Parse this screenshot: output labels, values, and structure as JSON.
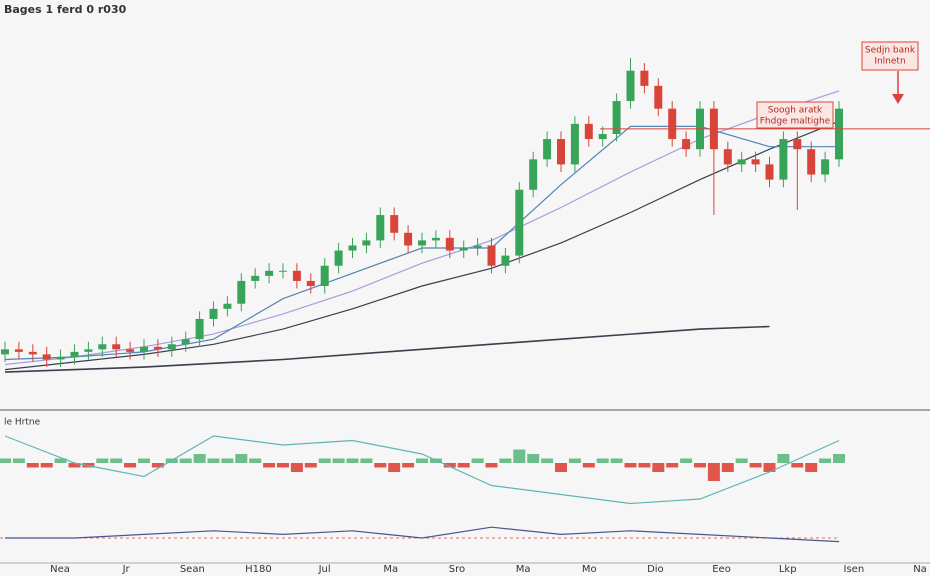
{
  "chart_data": [
    {
      "type": "candlestick",
      "title": "Bages 1 ferd 0 r030",
      "ylim": [
        50,
        200
      ],
      "up_color": "#3aa35a",
      "down_color": "#d9443a",
      "open": [
        68,
        70,
        69,
        68,
        66,
        67,
        69,
        70,
        72,
        70,
        69,
        71,
        70,
        72,
        74,
        82,
        86,
        88,
        97,
        99,
        101,
        101,
        97,
        95,
        103,
        109,
        111,
        113,
        123,
        116,
        111,
        113,
        114,
        109,
        110,
        111,
        103,
        107,
        133,
        145,
        153,
        143,
        159,
        153,
        155,
        168,
        180,
        174,
        165,
        153,
        149,
        165,
        149,
        143,
        145,
        143,
        137,
        153,
        149,
        139,
        145
      ],
      "high": [
        73,
        73,
        72,
        71,
        70,
        72,
        73,
        75,
        75,
        73,
        74,
        74,
        75,
        77,
        85,
        89,
        91,
        100,
        102,
        104,
        104,
        104,
        100,
        106,
        112,
        114,
        116,
        126,
        126,
        119,
        116,
        117,
        117,
        113,
        114,
        114,
        110,
        136,
        148,
        156,
        156,
        162,
        162,
        158,
        171,
        185,
        183,
        177,
        168,
        156,
        168,
        168,
        152,
        148,
        148,
        146,
        156,
        156,
        152,
        148,
        168
      ],
      "low": [
        65,
        66,
        65,
        63,
        63,
        64,
        66,
        67,
        67,
        66,
        66,
        67,
        67,
        69,
        71,
        79,
        83,
        85,
        94,
        96,
        98,
        94,
        92,
        92,
        100,
        106,
        108,
        110,
        113,
        108,
        108,
        110,
        106,
        106,
        107,
        100,
        100,
        104,
        130,
        142,
        140,
        140,
        150,
        150,
        152,
        165,
        171,
        162,
        150,
        146,
        146,
        123,
        140,
        140,
        140,
        134,
        134,
        125,
        136,
        136,
        142
      ],
      "close": [
        70,
        69,
        68,
        66,
        67,
        69,
        70,
        72,
        70,
        69,
        71,
        70,
        72,
        74,
        82,
        86,
        88,
        97,
        99,
        101,
        101,
        97,
        95,
        103,
        109,
        111,
        113,
        123,
        116,
        111,
        113,
        114,
        109,
        110,
        111,
        103,
        107,
        133,
        145,
        153,
        143,
        159,
        153,
        155,
        168,
        180,
        174,
        165,
        153,
        149,
        165,
        149,
        143,
        145,
        143,
        137,
        153,
        149,
        139,
        145,
        165
      ],
      "lines_x": [
        0,
        5,
        10,
        15,
        20,
        25,
        30,
        35,
        40,
        45,
        50,
        55,
        60
      ],
      "lines": [
        {
          "color": "#a99cdc",
          "values": [
            64,
            67,
            71,
            76,
            84,
            93,
            104,
            113,
            126,
            140,
            153,
            163,
            172
          ]
        },
        {
          "color": "#3a3f4e",
          "values": [
            62,
            65,
            68,
            72,
            78,
            86,
            95,
            102,
            112,
            124,
            137,
            149,
            160
          ]
        },
        {
          "color": "#4f86b3",
          "values": [
            66,
            67,
            69,
            74,
            90,
            100,
            110,
            110,
            135,
            158,
            158,
            150,
            150
          ]
        }
      ],
      "base_line": {
        "color": "#3a3f4e",
        "x": [
          0,
          10,
          20,
          30,
          40,
          50,
          55
        ],
        "values": [
          61,
          63,
          66,
          70,
          74,
          78,
          79
        ]
      },
      "resistance": {
        "value": 157,
        "color": "#d9443a"
      },
      "annotations": [
        [
          "Sedjn bank",
          "Inlnetn"
        ],
        [
          "Soogh aratk",
          "Fhdge maltighe"
        ]
      ],
      "x_labels": [
        "Nea",
        "Jr",
        "Sean",
        "H180",
        "Jul",
        "Ma",
        "Sro",
        "Ma",
        "Mo",
        "Dio",
        "Eeo",
        "Lkp",
        "Isen",
        "Na"
      ]
    },
    {
      "type": "bar",
      "title": "le Hrtne",
      "ylim": [
        -10,
        10
      ],
      "values": [
        1,
        1,
        -1,
        -1,
        1,
        -1,
        -1,
        1,
        1,
        -1,
        1,
        -1,
        1,
        1,
        2,
        1,
        1,
        2,
        1,
        -1,
        -1,
        -2,
        -1,
        1,
        1,
        1,
        1,
        -1,
        -2,
        -1,
        1,
        1,
        -1,
        -1,
        1,
        -1,
        1,
        3,
        2,
        1,
        -2,
        1,
        -1,
        1,
        1,
        -1,
        -1,
        -2,
        -1,
        1,
        -1,
        -4,
        -2,
        1,
        -1,
        -2,
        2,
        -1,
        -2,
        1,
        2
      ],
      "line": {
        "color": "#5fb5b5",
        "x": [
          0,
          5,
          10,
          15,
          20,
          25,
          30,
          35,
          40,
          45,
          50,
          55,
          60
        ],
        "values": [
          6,
          0,
          -3,
          6,
          4,
          5,
          2,
          -5,
          -7,
          -9,
          -8,
          -2,
          5
        ]
      }
    },
    {
      "type": "line",
      "ylim": [
        -5,
        5
      ],
      "x": [
        0,
        5,
        10,
        15,
        20,
        25,
        30,
        35,
        40,
        45,
        50,
        55,
        60
      ],
      "values": [
        0,
        0,
        1,
        2,
        1,
        2,
        0,
        3,
        1,
        2,
        1,
        0,
        -1
      ],
      "color": "#4a5590"
    }
  ]
}
